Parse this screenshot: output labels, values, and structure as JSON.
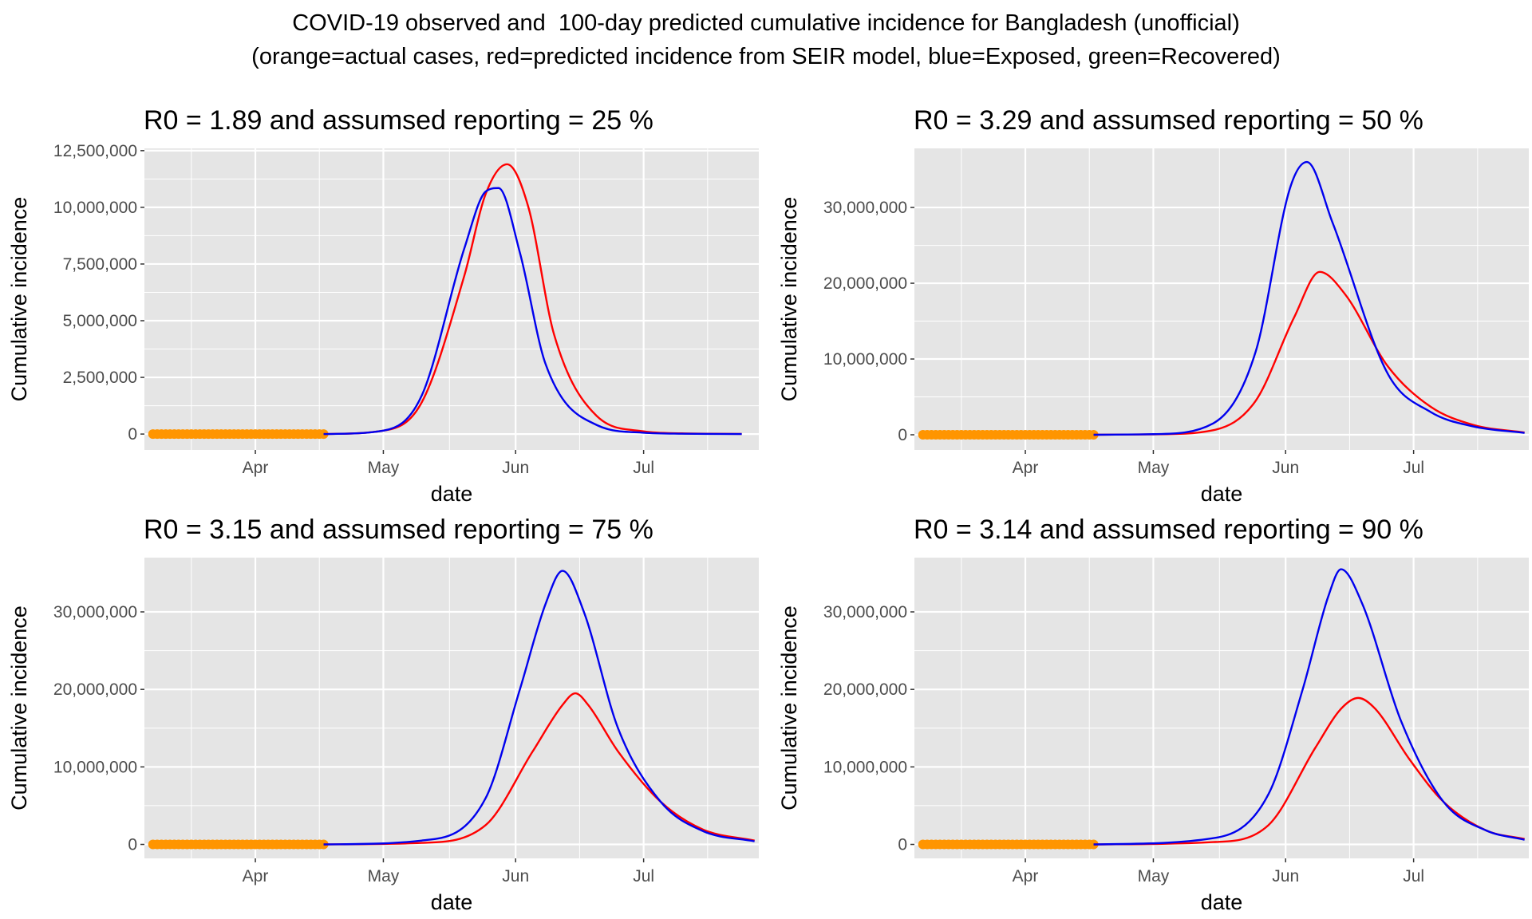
{
  "figure": {
    "title_line1": "COVID-19 observed and  100-day predicted cumulative incidence for Bangladesh (unofficial)",
    "title_line2": "(orange=actual cases, red=predicted incidence from SEIR model, blue=Exposed, green=Recovered)"
  },
  "colors": {
    "panel_bg": "#e5e5e5",
    "grid": "#ffffff",
    "actual_cases": "#ff9500",
    "predicted_incidence": "#ff0000",
    "exposed": "#0000ee"
  },
  "chart_data": [
    {
      "type": "line",
      "title": "R0 = 1.89 and assumsed reporting = 25 %",
      "xlabel": "date",
      "ylabel": "Cumulative incidence",
      "xlim": [
        "2020-03-06",
        "2020-07-28"
      ],
      "x_ticks": [
        {
          "date": "2020-04-01",
          "label": "Apr"
        },
        {
          "date": "2020-05-01",
          "label": "May"
        },
        {
          "date": "2020-06-01",
          "label": "Jun"
        },
        {
          "date": "2020-07-01",
          "label": "Jul"
        }
      ],
      "ylim": [
        -700000,
        12600000
      ],
      "y_ticks": [
        {
          "value": 0,
          "label": "0"
        },
        {
          "value": 2500000,
          "label": "2,500,000"
        },
        {
          "value": 5000000,
          "label": "5,000,000"
        },
        {
          "value": 7500000,
          "label": "7,500,000"
        },
        {
          "value": 10000000,
          "label": "10,000,000"
        },
        {
          "value": 12500000,
          "label": "12,500,000"
        }
      ],
      "observed": {
        "name": "actual cases",
        "start": "2020-03-08",
        "end": "2020-04-17",
        "value": 0
      },
      "series": [
        {
          "name": "predicted incidence",
          "color": "#ff0000",
          "x": [
            "2020-04-17",
            "2020-05-01",
            "2020-05-10",
            "2020-05-20",
            "2020-05-25",
            "2020-05-30",
            "2020-06-04",
            "2020-06-10",
            "2020-06-20",
            "2020-07-01",
            "2020-07-10",
            "2020-07-24"
          ],
          "values": [
            0,
            150000,
            1400000,
            7000000,
            10600000,
            11900000,
            10000000,
            4400000,
            800000,
            120000,
            30000,
            5000
          ]
        },
        {
          "name": "Exposed",
          "color": "#0000ee",
          "x": [
            "2020-04-17",
            "2020-05-01",
            "2020-05-10",
            "2020-05-20",
            "2020-05-25",
            "2020-05-28",
            "2020-06-02",
            "2020-06-08",
            "2020-06-20",
            "2020-07-01",
            "2020-07-10",
            "2020-07-24"
          ],
          "values": [
            0,
            150000,
            1700000,
            8200000,
            10700000,
            10850000,
            8000000,
            3100000,
            400000,
            60000,
            15000,
            2000
          ]
        }
      ]
    },
    {
      "type": "line",
      "title": "R0 = 3.29 and assumsed reporting = 50 %",
      "xlabel": "date",
      "ylabel": "Cumulative incidence",
      "xlim": [
        "2020-03-06",
        "2020-07-28"
      ],
      "x_ticks": [
        {
          "date": "2020-04-01",
          "label": "Apr"
        },
        {
          "date": "2020-05-01",
          "label": "May"
        },
        {
          "date": "2020-06-01",
          "label": "Jun"
        },
        {
          "date": "2020-07-01",
          "label": "Jul"
        }
      ],
      "ylim": [
        -2000000,
        37800000
      ],
      "y_ticks": [
        {
          "value": 0,
          "label": "0"
        },
        {
          "value": 10000000,
          "label": "10,000,000"
        },
        {
          "value": 20000000,
          "label": "20,000,000"
        },
        {
          "value": 30000000,
          "label": "30,000,000"
        }
      ],
      "observed": {
        "name": "actual cases",
        "start": "2020-03-08",
        "end": "2020-04-17",
        "value": 0
      },
      "series": [
        {
          "name": "predicted incidence",
          "color": "#ff0000",
          "x": [
            "2020-04-17",
            "2020-05-01",
            "2020-05-15",
            "2020-05-25",
            "2020-06-03",
            "2020-06-09",
            "2020-06-15",
            "2020-06-25",
            "2020-07-05",
            "2020-07-15",
            "2020-07-27"
          ],
          "values": [
            0,
            50000,
            600000,
            4500000,
            15500000,
            21500000,
            18500000,
            9000000,
            3700000,
            1300000,
            300000
          ]
        },
        {
          "name": "Exposed",
          "color": "#0000ee",
          "x": [
            "2020-04-17",
            "2020-05-01",
            "2020-05-15",
            "2020-05-25",
            "2020-06-02",
            "2020-06-06",
            "2020-06-12",
            "2020-06-25",
            "2020-07-05",
            "2020-07-15",
            "2020-07-27"
          ],
          "values": [
            0,
            80000,
            1500000,
            11000000,
            32500000,
            36000000,
            28000000,
            8000000,
            3000000,
            1100000,
            250000
          ]
        }
      ]
    },
    {
      "type": "line",
      "title": "R0 = 3.15 and assumsed reporting = 75 %",
      "xlabel": "date",
      "ylabel": "Cumulative incidence",
      "xlim": [
        "2020-03-06",
        "2020-07-28"
      ],
      "x_ticks": [
        {
          "date": "2020-04-01",
          "label": "Apr"
        },
        {
          "date": "2020-05-01",
          "label": "May"
        },
        {
          "date": "2020-06-01",
          "label": "Jun"
        },
        {
          "date": "2020-07-01",
          "label": "Jul"
        }
      ],
      "ylim": [
        -1800000,
        37000000
      ],
      "y_ticks": [
        {
          "value": 0,
          "label": "0"
        },
        {
          "value": 10000000,
          "label": "10,000,000"
        },
        {
          "value": 20000000,
          "label": "20,000,000"
        },
        {
          "value": 30000000,
          "label": "30,000,000"
        }
      ],
      "observed": {
        "name": "actual cases",
        "start": "2020-03-08",
        "end": "2020-04-17",
        "value": 0
      },
      "series": [
        {
          "name": "predicted incidence",
          "color": "#ff0000",
          "x": [
            "2020-04-17",
            "2020-05-10",
            "2020-05-25",
            "2020-06-05",
            "2020-06-12",
            "2020-06-15",
            "2020-06-18",
            "2020-06-25",
            "2020-07-05",
            "2020-07-15",
            "2020-07-27"
          ],
          "values": [
            0,
            200000,
            2500000,
            12000000,
            18000000,
            19500000,
            18000000,
            12000000,
            5500000,
            1900000,
            500000
          ]
        },
        {
          "name": "Exposed",
          "color": "#0000ee",
          "x": [
            "2020-04-17",
            "2020-05-10",
            "2020-05-25",
            "2020-06-02",
            "2020-06-08",
            "2020-06-12",
            "2020-06-17",
            "2020-06-25",
            "2020-07-05",
            "2020-07-15",
            "2020-07-27"
          ],
          "values": [
            0,
            500000,
            6000000,
            20000000,
            31000000,
            35300000,
            30000000,
            15000000,
            5500000,
            1700000,
            400000
          ]
        }
      ]
    },
    {
      "type": "line",
      "title": "R0 = 3.14 and assumsed reporting = 90 %",
      "xlabel": "date",
      "ylabel": "Cumulative incidence",
      "xlim": [
        "2020-03-06",
        "2020-07-28"
      ],
      "x_ticks": [
        {
          "date": "2020-04-01",
          "label": "Apr"
        },
        {
          "date": "2020-05-01",
          "label": "May"
        },
        {
          "date": "2020-06-01",
          "label": "Jun"
        },
        {
          "date": "2020-07-01",
          "label": "Jul"
        }
      ],
      "ylim": [
        -1800000,
        37000000
      ],
      "y_ticks": [
        {
          "value": 0,
          "label": "0"
        },
        {
          "value": 10000000,
          "label": "10,000,000"
        },
        {
          "value": 20000000,
          "label": "20,000,000"
        },
        {
          "value": 30000000,
          "label": "30,000,000"
        }
      ],
      "observed": {
        "name": "actual cases",
        "start": "2020-03-08",
        "end": "2020-04-17",
        "value": 0
      },
      "series": [
        {
          "name": "predicted incidence",
          "color": "#ff0000",
          "x": [
            "2020-04-17",
            "2020-05-15",
            "2020-05-28",
            "2020-06-08",
            "2020-06-14",
            "2020-06-18",
            "2020-06-22",
            "2020-06-30",
            "2020-07-08",
            "2020-07-18",
            "2020-07-27"
          ],
          "values": [
            0,
            300000,
            2500000,
            12500000,
            17500000,
            18900000,
            17500000,
            11000000,
            5500000,
            1800000,
            700000
          ]
        },
        {
          "name": "Exposed",
          "color": "#0000ee",
          "x": [
            "2020-04-17",
            "2020-05-15",
            "2020-05-28",
            "2020-06-05",
            "2020-06-11",
            "2020-06-14",
            "2020-06-19",
            "2020-06-28",
            "2020-07-08",
            "2020-07-18",
            "2020-07-27"
          ],
          "values": [
            0,
            800000,
            6500000,
            20000000,
            32000000,
            35500000,
            31000000,
            16000000,
            5500000,
            1800000,
            600000
          ]
        }
      ]
    }
  ]
}
